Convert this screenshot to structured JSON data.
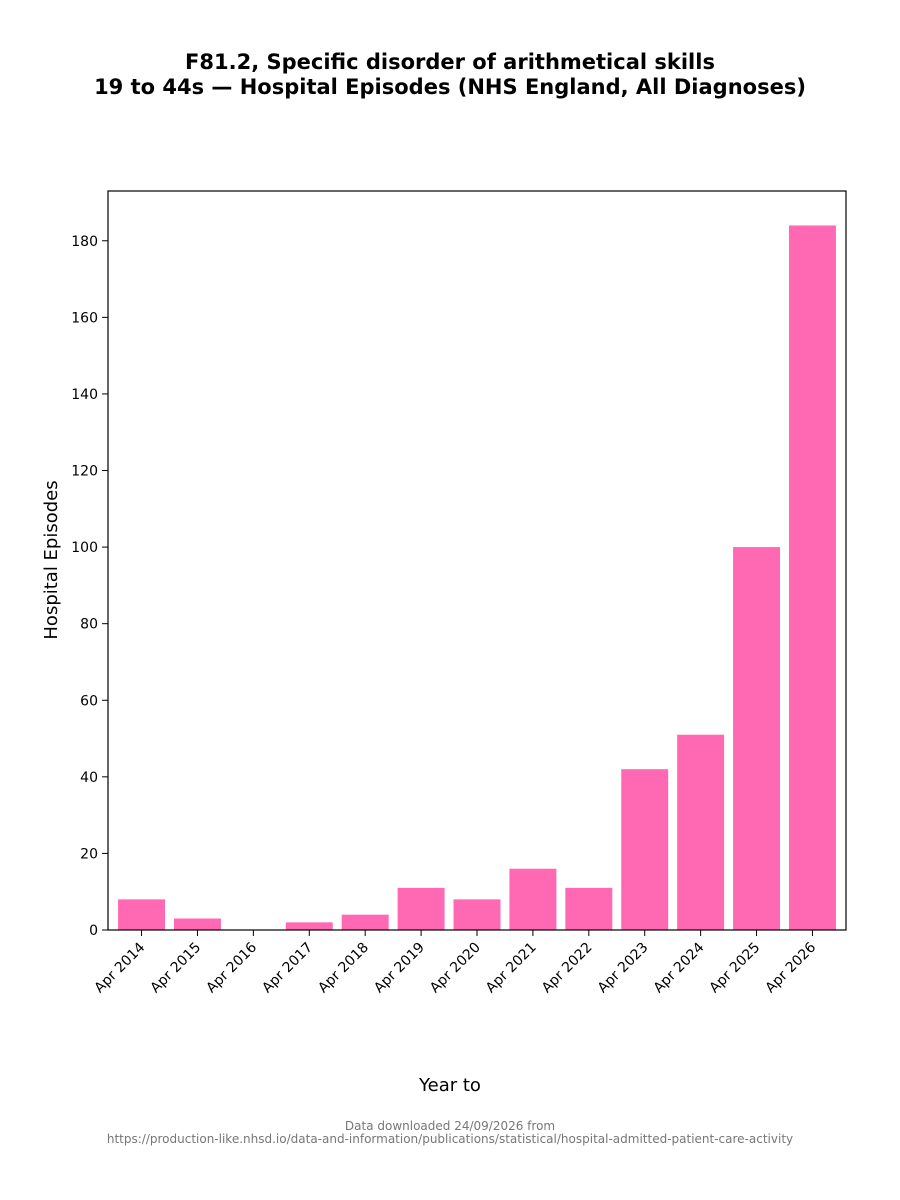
{
  "chart_data": {
    "type": "bar",
    "title_line1": "F81.2, Specific disorder of arithmetical skills",
    "title_line2": "19 to 44s — Hospital Episodes (NHS England, All Diagnoses)",
    "xlabel": "Year to",
    "ylabel": "Hospital Episodes",
    "categories": [
      "Apr 2014",
      "Apr 2015",
      "Apr 2016",
      "Apr 2017",
      "Apr 2018",
      "Apr 2019",
      "Apr 2020",
      "Apr 2021",
      "Apr 2022",
      "Apr 2023",
      "Apr 2024",
      "Apr 2025",
      "Apr 2026"
    ],
    "values": [
      8,
      3,
      0,
      2,
      4,
      11,
      8,
      16,
      11,
      42,
      51,
      100,
      184
    ],
    "yticks": [
      0,
      20,
      40,
      60,
      80,
      100,
      120,
      140,
      160,
      180
    ],
    "ylim": [
      0,
      193
    ],
    "bar_color": "#ff69b4",
    "grid": false,
    "legend": "none"
  },
  "footer": {
    "line1": "Data downloaded 24/09/2026 from",
    "line2": "https://production-like.nhsd.io/data-and-information/publications/statistical/hospital-admitted-patient-care-activity"
  }
}
